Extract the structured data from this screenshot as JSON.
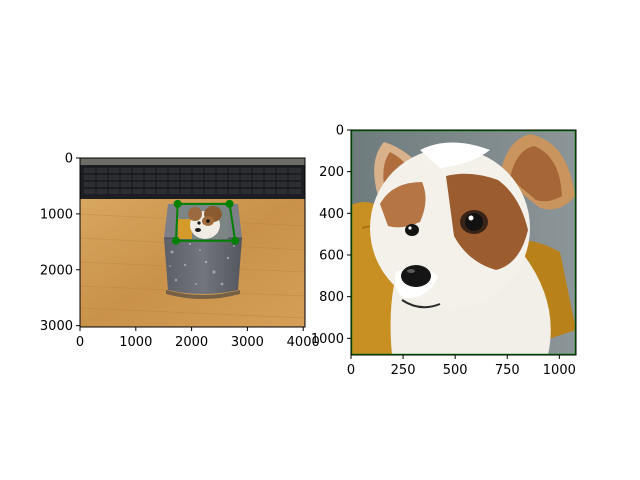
{
  "chart_data": [
    {
      "type": "image",
      "name": "left-axes",
      "content": "photo of a grey speckled metal tin on a wooden desk in front of a black keyboard; a square photo of a dog is pasted on the tin's front face",
      "xlim": [
        0,
        4032
      ],
      "ylim": [
        3024,
        0
      ],
      "y_inverted": true,
      "xticks": [
        0,
        1000,
        2000,
        3000,
        4000
      ],
      "xtick_labels": [
        "0",
        "1000",
        "2000",
        "3000",
        "4000"
      ],
      "yticks": [
        0,
        1000,
        2000,
        3000
      ],
      "ytick_labels": [
        "0",
        "1000",
        "2000",
        "3000"
      ],
      "overlay": {
        "type": "quad-with-corner-markers",
        "color": "#008000",
        "points": [
          [
            1750,
            820
          ],
          [
            2680,
            820
          ],
          [
            2780,
            1480
          ],
          [
            1720,
            1480
          ]
        ]
      }
    },
    {
      "type": "image",
      "name": "right-axes",
      "content": "close-up photo of a small white and brown terrier (Yorkshire terrier) with a yellow cushion behind it",
      "xlim": [
        0,
        1080
      ],
      "ylim": [
        1080,
        0
      ],
      "y_inverted": true,
      "xticks": [
        0,
        250,
        500,
        750,
        1000
      ],
      "xtick_labels": [
        "0",
        "250",
        "500",
        "750",
        "1000"
      ],
      "yticks": [
        0,
        200,
        400,
        600,
        800,
        1000
      ],
      "ytick_labels": [
        "0",
        "200",
        "400",
        "600",
        "800",
        "1000"
      ],
      "border_color": "#008000"
    }
  ]
}
